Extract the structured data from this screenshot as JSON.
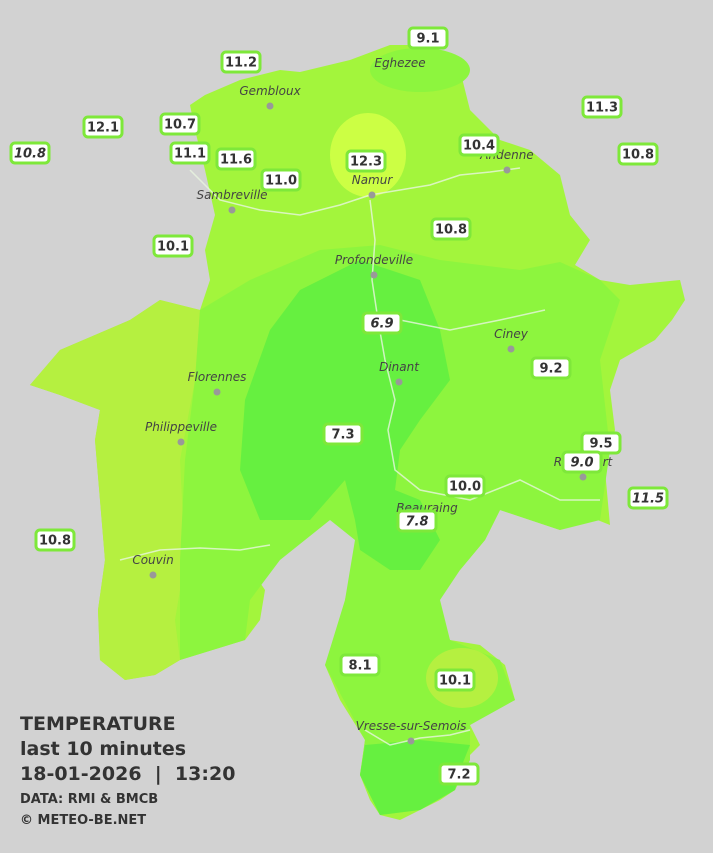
{
  "header": {
    "lines": [
      "TEMPERATURE",
      "last 10 minutes",
      "18-01-2026  |  13:20"
    ],
    "credits": [
      "DATA: RMI & BMCB",
      "© METEO-BE.NET"
    ]
  },
  "cities": [
    {
      "name": "Eghezee",
      "dot": false
    },
    {
      "name": "Gembloux",
      "dot": true
    },
    {
      "name": "Andenne",
      "dot": true
    },
    {
      "name": "Namur",
      "dot": true
    },
    {
      "name": "Sambreville",
      "dot": true
    },
    {
      "name": "Profondeville",
      "dot": true
    },
    {
      "name": "Ciney",
      "dot": true
    },
    {
      "name": "Dinant",
      "dot": true
    },
    {
      "name": "Florennes",
      "dot": true
    },
    {
      "name": "Philippeville",
      "dot": true
    },
    {
      "name": "Rochefort",
      "dot": true
    },
    {
      "name": "Beauraing",
      "dot": true
    },
    {
      "name": "Couvin",
      "dot": true
    },
    {
      "name": "Vresse-sur-Semois",
      "dot": true
    }
  ],
  "readings": [
    {
      "text": "9.1",
      "italic": false
    },
    {
      "text": "11.2",
      "italic": false
    },
    {
      "text": "11.3",
      "italic": false
    },
    {
      "text": "12.1",
      "italic": false
    },
    {
      "text": "10.7",
      "italic": false
    },
    {
      "text": "10.4",
      "italic": false
    },
    {
      "text": "10.8",
      "italic": true
    },
    {
      "text": "11.1",
      "italic": false
    },
    {
      "text": "11.6",
      "italic": false
    },
    {
      "text": "12.3",
      "italic": false
    },
    {
      "text": "10.8",
      "italic": false
    },
    {
      "text": "11.0",
      "italic": false
    },
    {
      "text": "10.8",
      "italic": false
    },
    {
      "text": "10.1",
      "italic": false
    },
    {
      "text": "6.9",
      "italic": true
    },
    {
      "text": "9.2",
      "italic": false
    },
    {
      "text": "7.3",
      "italic": false
    },
    {
      "text": "9.5",
      "italic": false
    },
    {
      "text": "9.0",
      "italic": true
    },
    {
      "text": "11.5",
      "italic": true
    },
    {
      "text": "10.0",
      "italic": false
    },
    {
      "text": "7.8",
      "italic": true
    },
    {
      "text": "10.8",
      "italic": false
    },
    {
      "text": "8.1",
      "italic": false
    },
    {
      "text": "10.1",
      "italic": false
    },
    {
      "text": "7.2",
      "italic": false
    }
  ]
}
